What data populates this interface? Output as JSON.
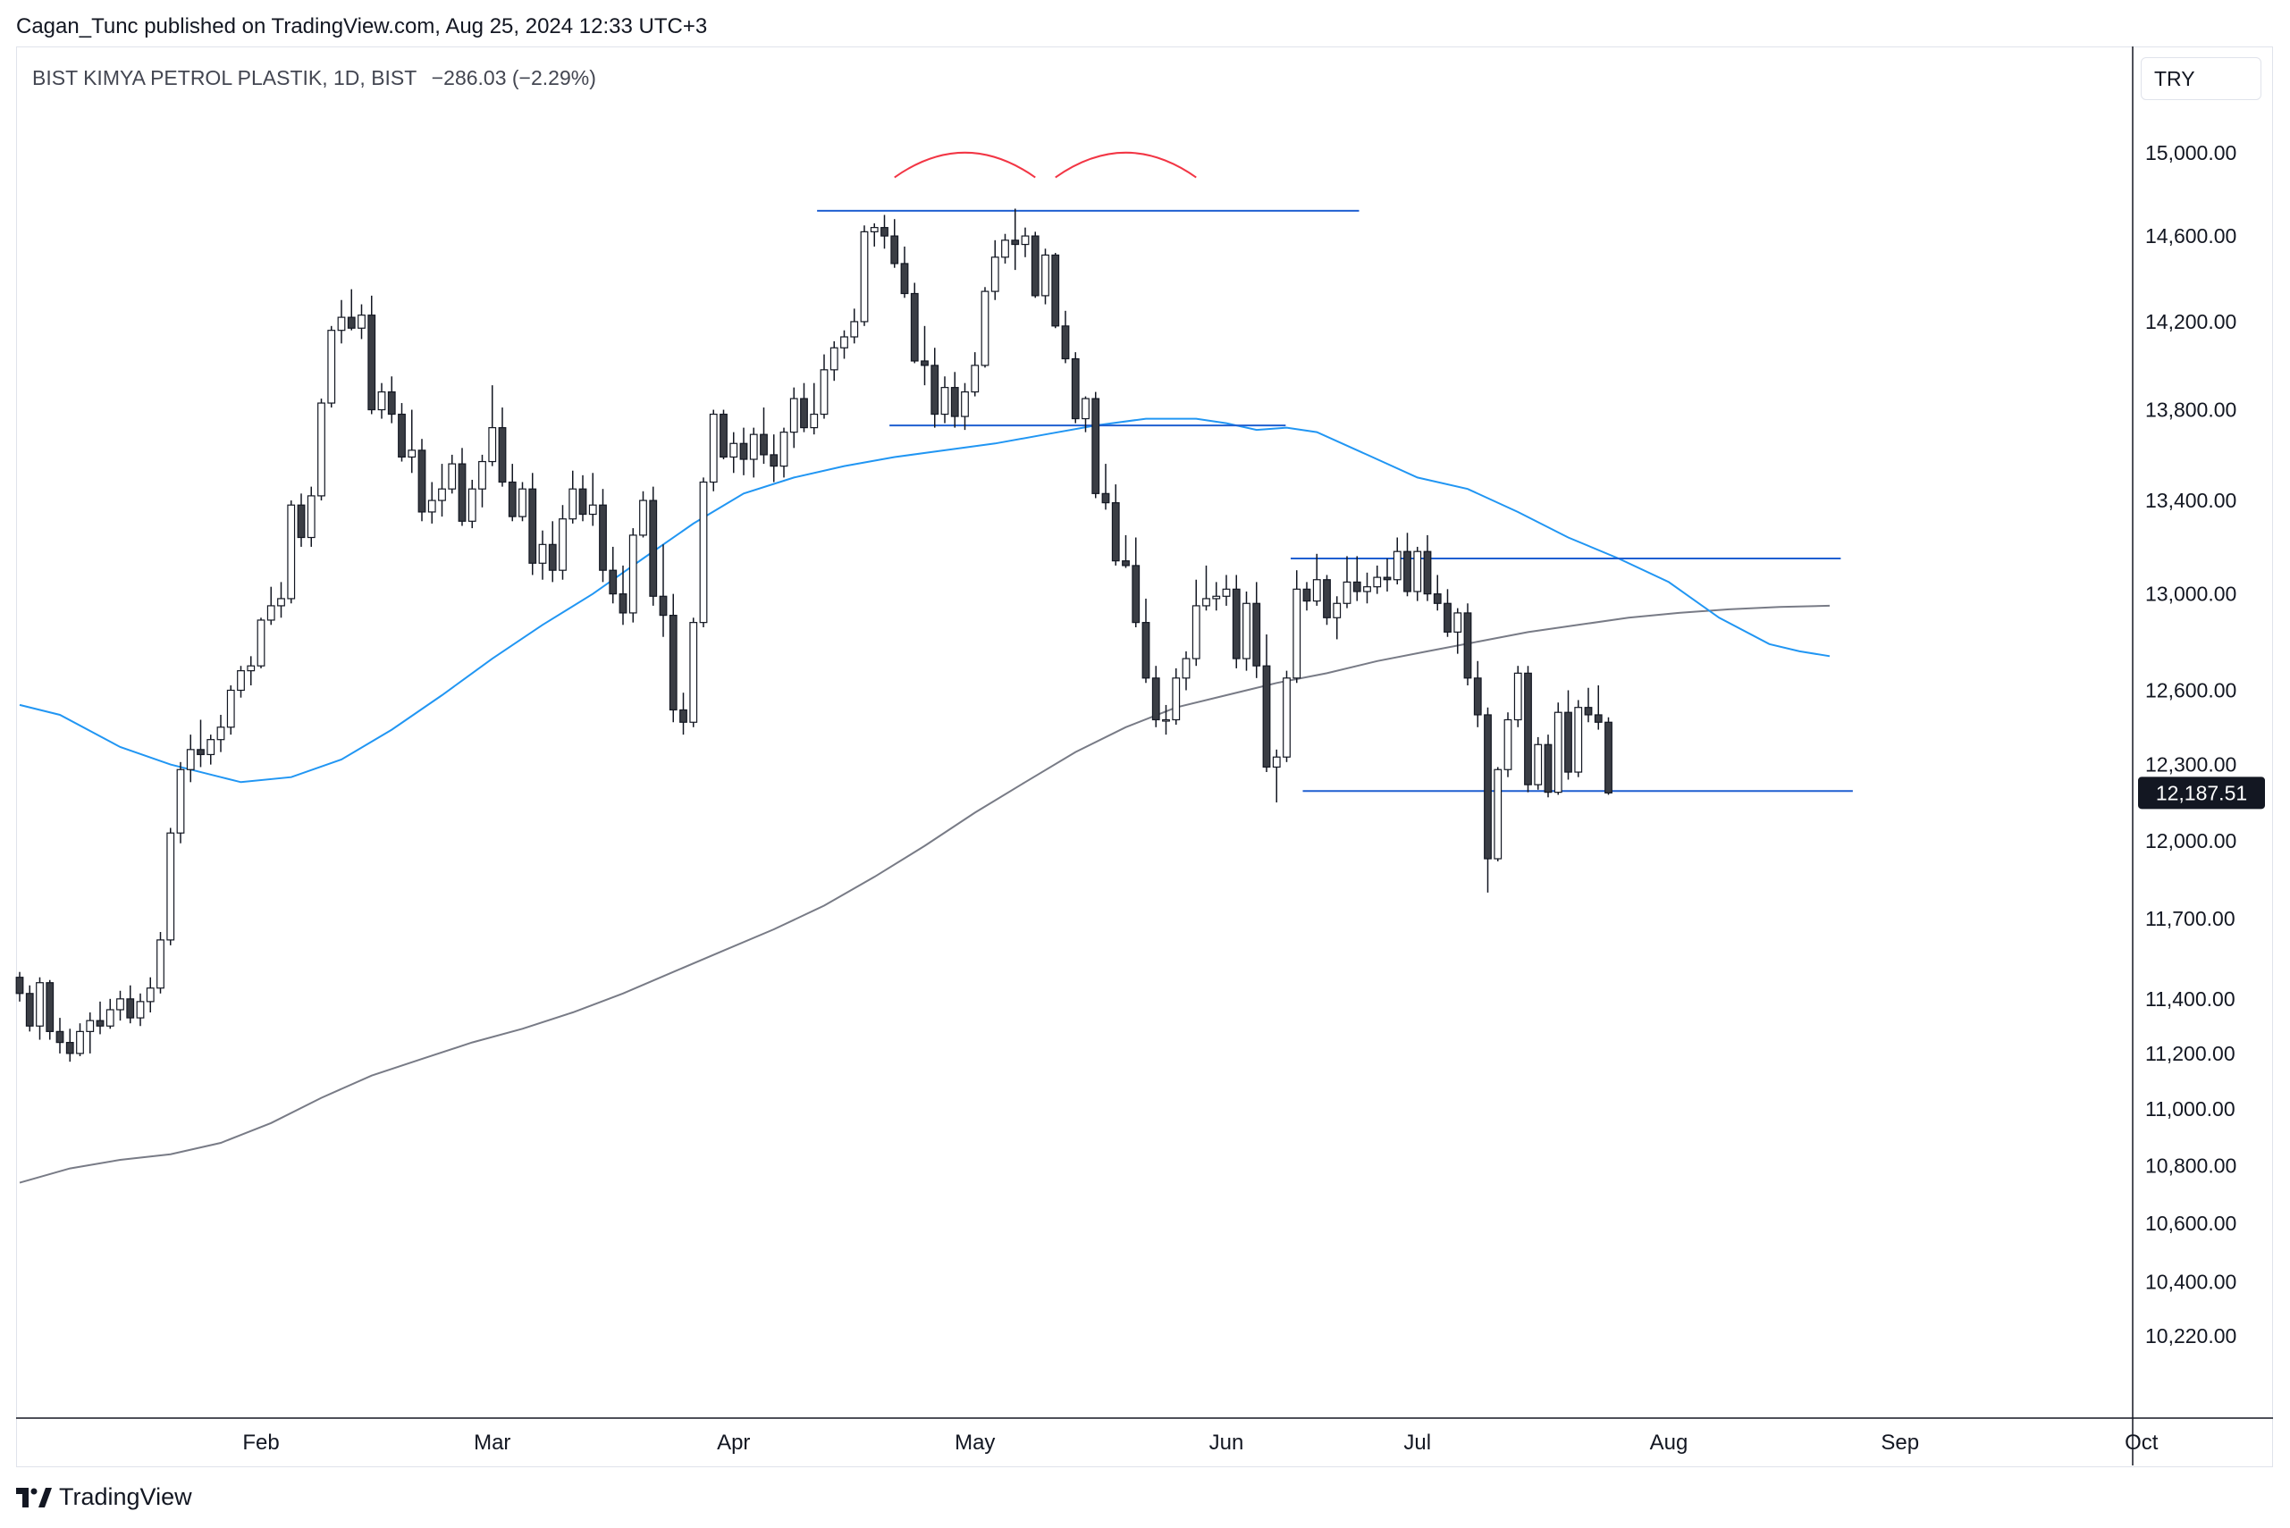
{
  "header": {
    "published_by": "Cagan_Tunc published on TradingView.com, Aug 25, 2024 12:33 UTC+3"
  },
  "legend": {
    "symbol": "BIST KIMYA PETROL PLASTIK, 1D, BIST",
    "change": "−286.03 (−2.29%)"
  },
  "currency": "TRY",
  "footer": {
    "brand": "TradingView"
  },
  "colors": {
    "up_fill": "#ffffff",
    "down_fill": "#3a3d44",
    "wick": "#131722",
    "ma_fast": "#2196f3",
    "ma_slow": "#787b86",
    "levels": "#1f5fd1",
    "arcs": "#f23645",
    "last_price_bg": "#131722"
  },
  "chart_data": {
    "type": "candlestick",
    "title": "BIST KIMYA PETROL PLASTIK, 1D, BIST",
    "ylim": [
      10000,
      15400
    ],
    "y_ticks": [
      "15,000.00",
      "14,600.00",
      "14,200.00",
      "13,800.00",
      "13,400.00",
      "13,000.00",
      "12,600.00",
      "12,300.00",
      "12,000.00",
      "11,700.00",
      "11,400.00",
      "11,200.00",
      "11,000.00",
      "10,800.00",
      "10,600.00",
      "10,400.00",
      "10,220.00"
    ],
    "y_tick_values": [
      15000,
      14600,
      14200,
      13800,
      13400,
      13000,
      12600,
      12300,
      12000,
      11700,
      11400,
      11200,
      11000,
      10800,
      10600,
      10400,
      10220
    ],
    "x_ticks": [
      "Feb",
      "Mar",
      "Apr",
      "May",
      "Jun",
      "Jul",
      "Aug",
      "Sep",
      "Oct"
    ],
    "x_tick_index": [
      24,
      47,
      71,
      95,
      120,
      139,
      164,
      187,
      211
    ],
    "last_price": 12187.51,
    "last_price_label": "12,187.51",
    "candles": [
      [
        11480,
        11500,
        11390,
        11420
      ],
      [
        11420,
        11450,
        11280,
        11300
      ],
      [
        11300,
        11480,
        11250,
        11460
      ],
      [
        11460,
        11470,
        11250,
        11280
      ],
      [
        11280,
        11330,
        11200,
        11240
      ],
      [
        11240,
        11290,
        11170,
        11200
      ],
      [
        11200,
        11310,
        11190,
        11280
      ],
      [
        11280,
        11350,
        11200,
        11320
      ],
      [
        11320,
        11390,
        11270,
        11300
      ],
      [
        11300,
        11400,
        11290,
        11360
      ],
      [
        11360,
        11430,
        11320,
        11400
      ],
      [
        11400,
        11450,
        11310,
        11330
      ],
      [
        11330,
        11420,
        11300,
        11390
      ],
      [
        11390,
        11480,
        11350,
        11440
      ],
      [
        11440,
        11650,
        11420,
        11620
      ],
      [
        11620,
        12050,
        11600,
        12030
      ],
      [
        12030,
        12310,
        11990,
        12280
      ],
      [
        12280,
        12420,
        12230,
        12360
      ],
      [
        12360,
        12480,
        12290,
        12340
      ],
      [
        12340,
        12420,
        12300,
        12400
      ],
      [
        12400,
        12500,
        12350,
        12450
      ],
      [
        12450,
        12620,
        12420,
        12600
      ],
      [
        12600,
        12700,
        12570,
        12680
      ],
      [
        12680,
        12740,
        12620,
        12700
      ],
      [
        12700,
        12900,
        12690,
        12890
      ],
      [
        12890,
        13030,
        12870,
        12950
      ],
      [
        12950,
        13050,
        12900,
        12980
      ],
      [
        12980,
        13400,
        12960,
        13380
      ],
      [
        13380,
        13430,
        13200,
        13240
      ],
      [
        13240,
        13460,
        13200,
        13420
      ],
      [
        13420,
        13850,
        13400,
        13830
      ],
      [
        13830,
        14180,
        13810,
        14160
      ],
      [
        14160,
        14300,
        14100,
        14220
      ],
      [
        14220,
        14350,
        14160,
        14170
      ],
      [
        14170,
        14280,
        14120,
        14230
      ],
      [
        14230,
        14320,
        13780,
        13800
      ],
      [
        13800,
        13920,
        13760,
        13880
      ],
      [
        13880,
        13950,
        13740,
        13780
      ],
      [
        13780,
        13830,
        13570,
        13590
      ],
      [
        13590,
        13800,
        13520,
        13620
      ],
      [
        13620,
        13670,
        13310,
        13350
      ],
      [
        13350,
        13480,
        13300,
        13400
      ],
      [
        13400,
        13560,
        13330,
        13450
      ],
      [
        13450,
        13600,
        13430,
        13560
      ],
      [
        13560,
        13630,
        13290,
        13310
      ],
      [
        13310,
        13490,
        13280,
        13450
      ],
      [
        13450,
        13600,
        13370,
        13570
      ],
      [
        13570,
        13910,
        13550,
        13720
      ],
      [
        13720,
        13810,
        13460,
        13480
      ],
      [
        13480,
        13560,
        13310,
        13330
      ],
      [
        13330,
        13480,
        13310,
        13450
      ],
      [
        13450,
        13520,
        13080,
        13130
      ],
      [
        13130,
        13270,
        13060,
        13210
      ],
      [
        13210,
        13310,
        13050,
        13100
      ],
      [
        13100,
        13380,
        13060,
        13320
      ],
      [
        13320,
        13530,
        13300,
        13450
      ],
      [
        13450,
        13510,
        13310,
        13340
      ],
      [
        13340,
        13520,
        13290,
        13380
      ],
      [
        13380,
        13450,
        13050,
        13100
      ],
      [
        13100,
        13200,
        12960,
        13000
      ],
      [
        13000,
        13120,
        12870,
        12920
      ],
      [
        12920,
        13280,
        12880,
        13250
      ],
      [
        13250,
        13440,
        13240,
        13400
      ],
      [
        13400,
        13460,
        12950,
        12990
      ],
      [
        12990,
        13210,
        12820,
        12910
      ],
      [
        12910,
        13000,
        12470,
        12520
      ],
      [
        12520,
        12590,
        12420,
        12470
      ],
      [
        12470,
        12900,
        12450,
        12880
      ],
      [
        12880,
        13500,
        12860,
        13480
      ],
      [
        13480,
        13800,
        13440,
        13780
      ],
      [
        13780,
        13800,
        13580,
        13590
      ],
      [
        13590,
        13700,
        13520,
        13650
      ],
      [
        13650,
        13720,
        13510,
        13580
      ],
      [
        13580,
        13720,
        13500,
        13690
      ],
      [
        13690,
        13810,
        13560,
        13600
      ],
      [
        13600,
        13690,
        13480,
        13550
      ],
      [
        13550,
        13720,
        13500,
        13700
      ],
      [
        13700,
        13900,
        13630,
        13850
      ],
      [
        13850,
        13920,
        13700,
        13720
      ],
      [
        13720,
        13920,
        13690,
        13780
      ],
      [
        13780,
        14050,
        13760,
        13980
      ],
      [
        13980,
        14110,
        13930,
        14080
      ],
      [
        14080,
        14160,
        14030,
        14130
      ],
      [
        14130,
        14260,
        14100,
        14200
      ],
      [
        14200,
        14650,
        14180,
        14620
      ],
      [
        14620,
        14660,
        14550,
        14640
      ],
      [
        14640,
        14700,
        14540,
        14600
      ],
      [
        14600,
        14680,
        14450,
        14470
      ],
      [
        14470,
        14550,
        14310,
        14330
      ],
      [
        14330,
        14380,
        14010,
        14020
      ],
      [
        14020,
        14180,
        13910,
        14000
      ],
      [
        14000,
        14080,
        13720,
        13780
      ],
      [
        13780,
        13950,
        13740,
        13900
      ],
      [
        13900,
        13970,
        13720,
        13770
      ],
      [
        13770,
        13920,
        13710,
        13880
      ],
      [
        13880,
        14060,
        13860,
        14000
      ],
      [
        14000,
        14360,
        13990,
        14340
      ],
      [
        14340,
        14580,
        14300,
        14500
      ],
      [
        14500,
        14610,
        14470,
        14580
      ],
      [
        14580,
        14730,
        14440,
        14560
      ],
      [
        14560,
        14640,
        14500,
        14600
      ],
      [
        14600,
        14620,
        14310,
        14320
      ],
      [
        14320,
        14540,
        14280,
        14510
      ],
      [
        14510,
        14520,
        14170,
        14180
      ],
      [
        14180,
        14250,
        14010,
        14030
      ],
      [
        14030,
        14060,
        13740,
        13760
      ],
      [
        13760,
        13860,
        13700,
        13850
      ],
      [
        13850,
        13880,
        13410,
        13430
      ],
      [
        13430,
        13560,
        13360,
        13390
      ],
      [
        13390,
        13470,
        13120,
        13140
      ],
      [
        13140,
        13250,
        13110,
        13120
      ],
      [
        13120,
        13240,
        12860,
        12880
      ],
      [
        12880,
        12980,
        12630,
        12650
      ],
      [
        12650,
        12700,
        12450,
        12480
      ],
      [
        12480,
        12540,
        12420,
        12480
      ],
      [
        12480,
        12690,
        12460,
        12650
      ],
      [
        12650,
        12760,
        12600,
        12730
      ],
      [
        12730,
        13060,
        12700,
        12950
      ],
      [
        12950,
        13120,
        12930,
        12980
      ],
      [
        12980,
        13050,
        12930,
        12990
      ],
      [
        12990,
        13080,
        12950,
        13020
      ],
      [
        13020,
        13080,
        12690,
        12730
      ],
      [
        12730,
        13010,
        12680,
        12960
      ],
      [
        12960,
        13050,
        12650,
        12700
      ],
      [
        12700,
        12830,
        12270,
        12290
      ],
      [
        12290,
        12360,
        12150,
        12330
      ],
      [
        12330,
        12680,
        12310,
        12650
      ],
      [
        12650,
        13100,
        12630,
        13020
      ],
      [
        13020,
        13050,
        12930,
        12970
      ],
      [
        12970,
        13170,
        12950,
        13060
      ],
      [
        13060,
        13080,
        12870,
        12900
      ],
      [
        12900,
        12990,
        12810,
        12960
      ],
      [
        12960,
        13160,
        12940,
        13050
      ],
      [
        13050,
        13160,
        12970,
        13010
      ],
      [
        13010,
        13090,
        12960,
        13030
      ],
      [
        13030,
        13120,
        13000,
        13070
      ],
      [
        13070,
        13150,
        13010,
        13060
      ],
      [
        13060,
        13240,
        13040,
        13180
      ],
      [
        13180,
        13260,
        12990,
        13010
      ],
      [
        13010,
        13200,
        12970,
        13180
      ],
      [
        13180,
        13250,
        12970,
        13000
      ],
      [
        13000,
        13080,
        12930,
        12960
      ],
      [
        12960,
        13020,
        12820,
        12840
      ],
      [
        12840,
        12940,
        12750,
        12920
      ],
      [
        12920,
        12960,
        12620,
        12650
      ],
      [
        12650,
        12720,
        12450,
        12500
      ],
      [
        12500,
        12530,
        11800,
        11930
      ],
      [
        11930,
        12290,
        11920,
        12280
      ],
      [
        12280,
        12510,
        12250,
        12480
      ],
      [
        12480,
        12700,
        12450,
        12670
      ],
      [
        12670,
        12700,
        12190,
        12220
      ],
      [
        12220,
        12410,
        12200,
        12380
      ],
      [
        12380,
        12420,
        12170,
        12190
      ],
      [
        12190,
        12550,
        12180,
        12510
      ],
      [
        12510,
        12600,
        12240,
        12270
      ],
      [
        12270,
        12560,
        12250,
        12530
      ],
      [
        12530,
        12610,
        12470,
        12500
      ],
      [
        12500,
        12620,
        12440,
        12470
      ],
      [
        12470,
        12490,
        12180,
        12187.51
      ]
    ],
    "ma_fast": [
      [
        0,
        12540
      ],
      [
        4,
        12500
      ],
      [
        10,
        12370
      ],
      [
        15,
        12300
      ],
      [
        20,
        12250
      ],
      [
        22,
        12230
      ],
      [
        27,
        12250
      ],
      [
        32,
        12320
      ],
      [
        37,
        12440
      ],
      [
        42,
        12580
      ],
      [
        47,
        12730
      ],
      [
        52,
        12870
      ],
      [
        57,
        13000
      ],
      [
        62,
        13150
      ],
      [
        67,
        13300
      ],
      [
        72,
        13430
      ],
      [
        77,
        13500
      ],
      [
        82,
        13550
      ],
      [
        87,
        13590
      ],
      [
        92,
        13620
      ],
      [
        97,
        13650
      ],
      [
        102,
        13690
      ],
      [
        107,
        13730
      ],
      [
        112,
        13760
      ],
      [
        117,
        13760
      ],
      [
        120,
        13740
      ],
      [
        123,
        13710
      ],
      [
        126,
        13720
      ],
      [
        129,
        13700
      ],
      [
        134,
        13600
      ],
      [
        139,
        13500
      ],
      [
        144,
        13450
      ],
      [
        149,
        13350
      ],
      [
        154,
        13240
      ],
      [
        159,
        13150
      ],
      [
        164,
        13050
      ],
      [
        169,
        12900
      ],
      [
        174,
        12790
      ],
      [
        177,
        12760
      ],
      [
        180,
        12740
      ]
    ],
    "ma_slow": [
      [
        0,
        10740
      ],
      [
        5,
        10790
      ],
      [
        10,
        10820
      ],
      [
        15,
        10840
      ],
      [
        20,
        10880
      ],
      [
        25,
        10950
      ],
      [
        30,
        11040
      ],
      [
        35,
        11120
      ],
      [
        40,
        11180
      ],
      [
        45,
        11240
      ],
      [
        50,
        11290
      ],
      [
        55,
        11350
      ],
      [
        60,
        11420
      ],
      [
        65,
        11500
      ],
      [
        70,
        11580
      ],
      [
        75,
        11660
      ],
      [
        80,
        11750
      ],
      [
        85,
        11860
      ],
      [
        90,
        11980
      ],
      [
        95,
        12110
      ],
      [
        100,
        12230
      ],
      [
        105,
        12350
      ],
      [
        110,
        12450
      ],
      [
        115,
        12530
      ],
      [
        120,
        12580
      ],
      [
        125,
        12630
      ],
      [
        130,
        12670
      ],
      [
        135,
        12720
      ],
      [
        140,
        12760
      ],
      [
        145,
        12800
      ],
      [
        150,
        12840
      ],
      [
        155,
        12870
      ],
      [
        160,
        12900
      ],
      [
        165,
        12920
      ],
      [
        170,
        12935
      ],
      [
        175,
        12945
      ],
      [
        180,
        12950
      ]
    ],
    "levels": [
      {
        "y": 14720,
        "x1": 79.3,
        "x2": 133.2
      },
      {
        "y": 13730,
        "x1": 86.5,
        "x2": 125.9
      },
      {
        "y": 13150,
        "x1": 126.4,
        "x2": 181.1
      },
      {
        "y": 12195,
        "x1": 127.6,
        "x2": 182.3
      }
    ],
    "arcs": [
      {
        "x1": 87.0,
        "x2": 101.0,
        "y_base": 14880,
        "y_peak": 15000
      },
      {
        "x1": 103.0,
        "x2": 117.0,
        "y_base": 14880,
        "y_peak": 15000
      }
    ]
  }
}
